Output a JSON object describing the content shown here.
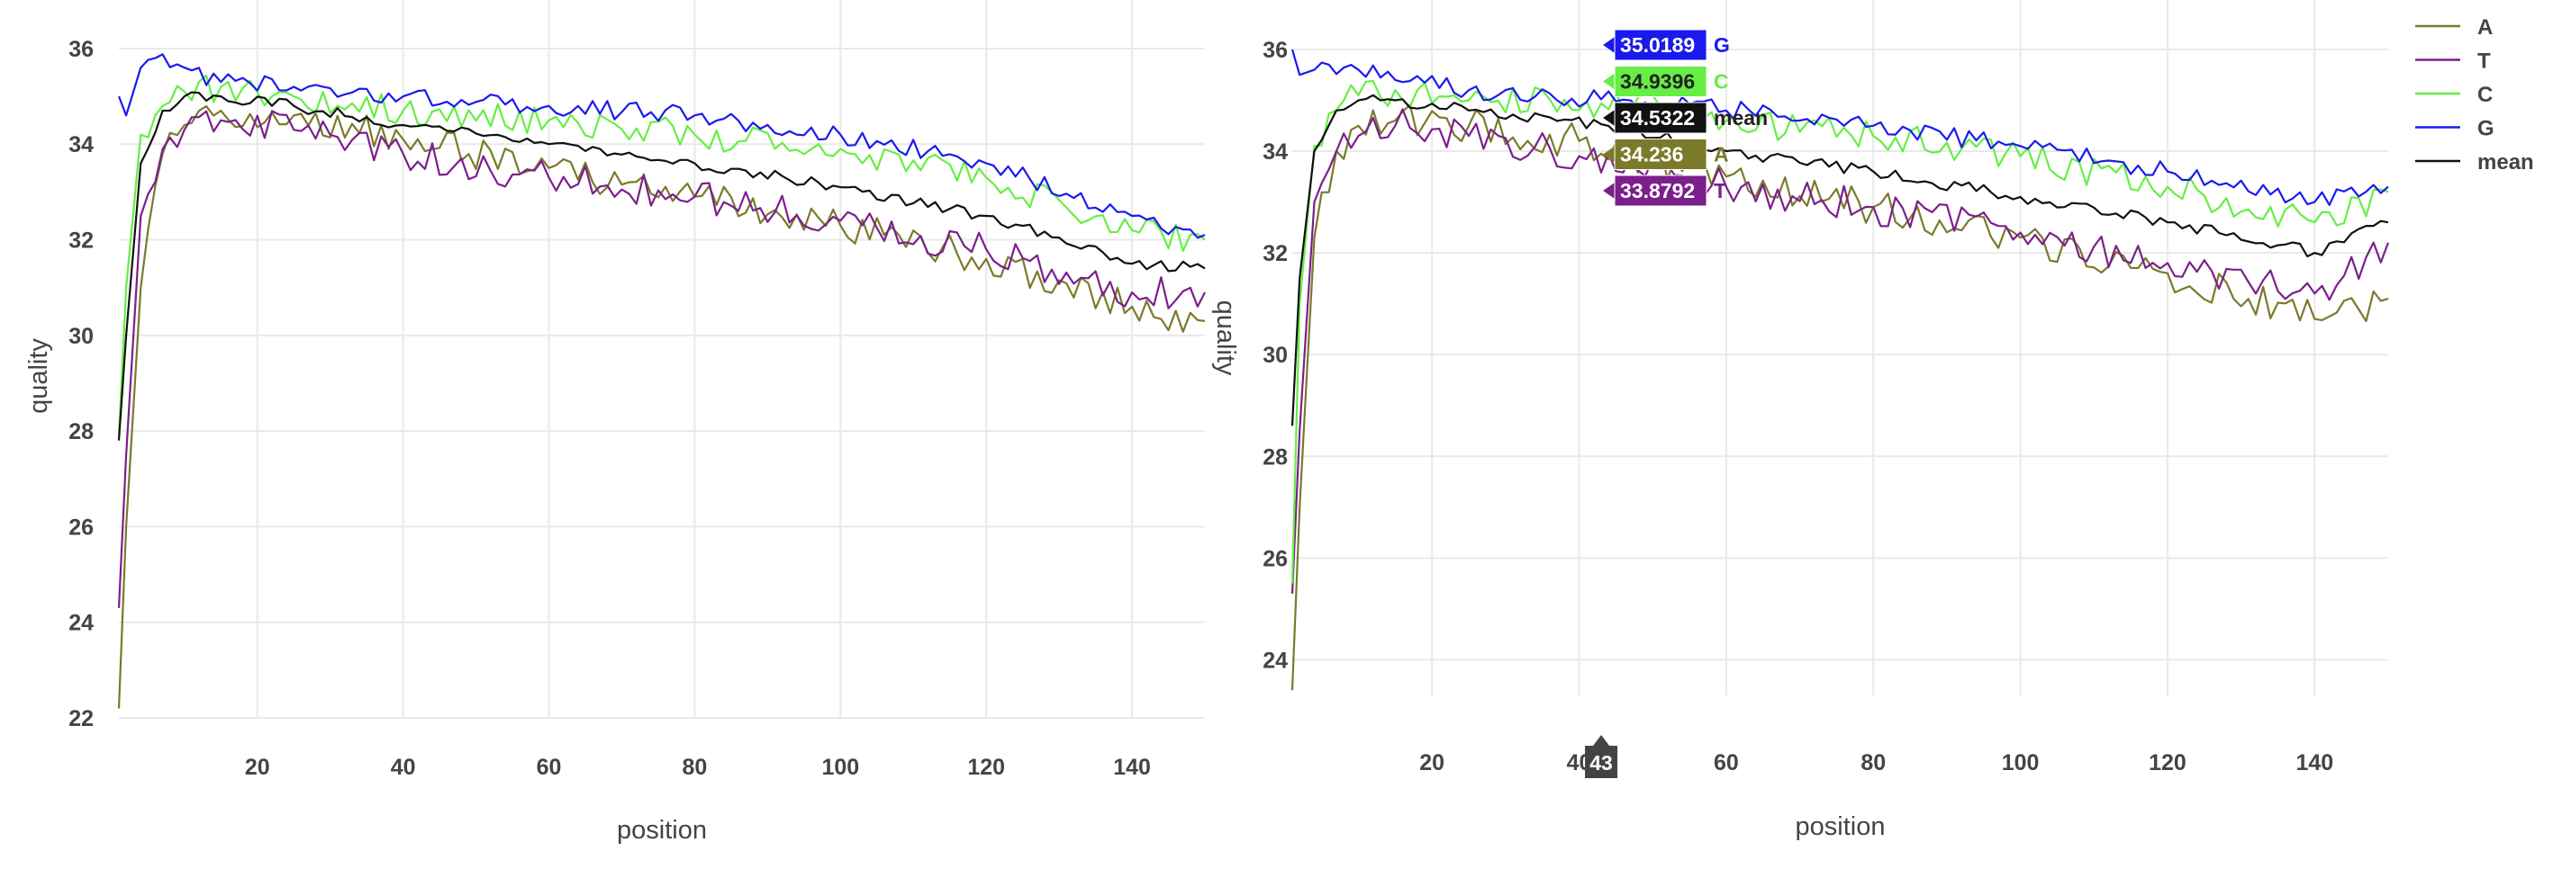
{
  "chart_data": [
    {
      "type": "line",
      "xlabel": "position",
      "ylabel": "quality",
      "xlim": [
        1,
        150
      ],
      "ylim": [
        22,
        36.3
      ],
      "xticks": [
        20,
        40,
        60,
        80,
        100,
        120,
        140
      ],
      "yticks": [
        22,
        24,
        26,
        28,
        30,
        32,
        34,
        36
      ],
      "grid": true,
      "series": [
        {
          "name": "A",
          "color": "#7a7a2a",
          "key_points": [
            [
              1,
              22.2
            ],
            [
              2,
              26
            ],
            [
              4,
              31
            ],
            [
              7,
              33.8
            ],
            [
              10,
              34.4
            ],
            [
              15,
              34.7
            ],
            [
              25,
              34.6
            ],
            [
              40,
              34.1
            ],
            [
              60,
              33.5
            ],
            [
              80,
              32.9
            ],
            [
              100,
              32.3
            ],
            [
              120,
              31.6
            ],
            [
              140,
              30.6
            ],
            [
              150,
              30.3
            ]
          ],
          "noise": 0.35
        },
        {
          "name": "T",
          "color": "#7b1f8c",
          "key_points": [
            [
              1,
              24.3
            ],
            [
              2,
              27.5
            ],
            [
              4,
              32.5
            ],
            [
              7,
              33.9
            ],
            [
              10,
              34.3
            ],
            [
              15,
              34.5
            ],
            [
              25,
              34.3
            ],
            [
              40,
              33.8
            ],
            [
              60,
              33.3
            ],
            [
              80,
              32.9
            ],
            [
              100,
              32.4
            ],
            [
              120,
              31.8
            ],
            [
              140,
              30.9
            ],
            [
              150,
              30.9
            ]
          ],
          "noise": 0.35
        },
        {
          "name": "C",
          "color": "#66ee44",
          "key_points": [
            [
              1,
              27.9
            ],
            [
              2,
              31
            ],
            [
              4,
              34.2
            ],
            [
              7,
              34.8
            ],
            [
              10,
              35.1
            ],
            [
              15,
              35.2
            ],
            [
              25,
              35.0
            ],
            [
              40,
              34.7
            ],
            [
              60,
              34.5
            ],
            [
              80,
              34.2
            ],
            [
              100,
              33.9
            ],
            [
              120,
              33.3
            ],
            [
              140,
              32.2
            ],
            [
              150,
              32.0
            ]
          ],
          "noise": 0.3
        },
        {
          "name": "G",
          "color": "#1a1aee",
          "key_points": [
            [
              1,
              35.0
            ],
            [
              2,
              34.6
            ],
            [
              4,
              35.6
            ],
            [
              6,
              35.8
            ],
            [
              10,
              35.6
            ],
            [
              15,
              35.3
            ],
            [
              25,
              35.2
            ],
            [
              40,
              35.0
            ],
            [
              60,
              34.8
            ],
            [
              80,
              34.6
            ],
            [
              100,
              34.2
            ],
            [
              120,
              33.6
            ],
            [
              140,
              32.5
            ],
            [
              150,
              32.1
            ]
          ],
          "noise": 0.2
        },
        {
          "name": "mean",
          "color": "#111111",
          "key_points": [
            [
              1,
              27.8
            ],
            [
              2,
              30
            ],
            [
              4,
              33.6
            ],
            [
              7,
              34.7
            ],
            [
              10,
              35.0
            ],
            [
              15,
              35.0
            ],
            [
              25,
              34.8
            ],
            [
              40,
              34.4
            ],
            [
              60,
              34.0
            ],
            [
              80,
              33.6
            ],
            [
              100,
              33.1
            ],
            [
              120,
              32.5
            ],
            [
              140,
              31.5
            ],
            [
              150,
              31.4
            ]
          ],
          "noise": 0.12
        }
      ]
    },
    {
      "type": "line",
      "xlabel": "position",
      "ylabel": "quality",
      "xlim": [
        1,
        150
      ],
      "ylim": [
        23.3,
        36.3
      ],
      "xticks": [
        20,
        40,
        60,
        80,
        100,
        120,
        140
      ],
      "yticks": [
        24,
        26,
        28,
        30,
        32,
        34,
        36
      ],
      "grid": true,
      "legend_position": "top-right",
      "hover": {
        "x": 43,
        "x_label": "43",
        "points": [
          {
            "series": "G",
            "value": "35.0189"
          },
          {
            "series": "C",
            "value": "34.9396"
          },
          {
            "series": "mean",
            "value": "34.5322"
          },
          {
            "series": "A",
            "value": "34.236"
          },
          {
            "series": "T",
            "value": "33.8792"
          }
        ]
      },
      "series": [
        {
          "name": "A",
          "color": "#7a7a2a",
          "key_points": [
            [
              1,
              23.4
            ],
            [
              2,
              27
            ],
            [
              4,
              32.3
            ],
            [
              7,
              34.0
            ],
            [
              10,
              34.5
            ],
            [
              15,
              34.6
            ],
            [
              25,
              34.5
            ],
            [
              40,
              34.2
            ],
            [
              60,
              33.5
            ],
            [
              80,
              32.9
            ],
            [
              100,
              32.3
            ],
            [
              120,
              31.6
            ],
            [
              140,
              30.7
            ],
            [
              150,
              31.1
            ]
          ],
          "noise": 0.35
        },
        {
          "name": "T",
          "color": "#7b1f8c",
          "key_points": [
            [
              1,
              25.3
            ],
            [
              2,
              28.5
            ],
            [
              4,
              33.0
            ],
            [
              7,
              34.0
            ],
            [
              10,
              34.3
            ],
            [
              15,
              34.5
            ],
            [
              25,
              34.3
            ],
            [
              40,
              33.9
            ],
            [
              60,
              33.3
            ],
            [
              80,
              32.9
            ],
            [
              100,
              32.4
            ],
            [
              120,
              31.8
            ],
            [
              140,
              31.2
            ],
            [
              150,
              32.2
            ]
          ],
          "noise": 0.35
        },
        {
          "name": "C",
          "color": "#66ee44",
          "key_points": [
            [
              1,
              25.5
            ],
            [
              2,
              31
            ],
            [
              4,
              34.1
            ],
            [
              7,
              34.8
            ],
            [
              10,
              35.1
            ],
            [
              15,
              35.2
            ],
            [
              25,
              35.0
            ],
            [
              43,
              34.94
            ],
            [
              60,
              34.6
            ],
            [
              80,
              34.3
            ],
            [
              100,
              33.9
            ],
            [
              120,
              33.3
            ],
            [
              140,
              32.6
            ],
            [
              150,
              33.2
            ]
          ],
          "noise": 0.3
        },
        {
          "name": "G",
          "color": "#1a1aee",
          "key_points": [
            [
              1,
              36.0
            ],
            [
              2,
              35.5
            ],
            [
              4,
              35.6
            ],
            [
              6,
              35.7
            ],
            [
              10,
              35.6
            ],
            [
              15,
              35.4
            ],
            [
              25,
              35.2
            ],
            [
              43,
              35.02
            ],
            [
              60,
              34.8
            ],
            [
              80,
              34.5
            ],
            [
              100,
              34.1
            ],
            [
              120,
              33.6
            ],
            [
              140,
              33.0
            ],
            [
              150,
              33.3
            ]
          ],
          "noise": 0.2
        },
        {
          "name": "mean",
          "color": "#111111",
          "key_points": [
            [
              1,
              28.6
            ],
            [
              2,
              31.5
            ],
            [
              4,
              34.0
            ],
            [
              7,
              34.8
            ],
            [
              10,
              35.0
            ],
            [
              15,
              35.0
            ],
            [
              25,
              34.8
            ],
            [
              43,
              34.53
            ],
            [
              60,
              34.0
            ],
            [
              80,
              33.6
            ],
            [
              100,
              33.1
            ],
            [
              120,
              32.6
            ],
            [
              140,
              32.0
            ],
            [
              150,
              32.6
            ]
          ],
          "noise": 0.12
        }
      ]
    }
  ]
}
